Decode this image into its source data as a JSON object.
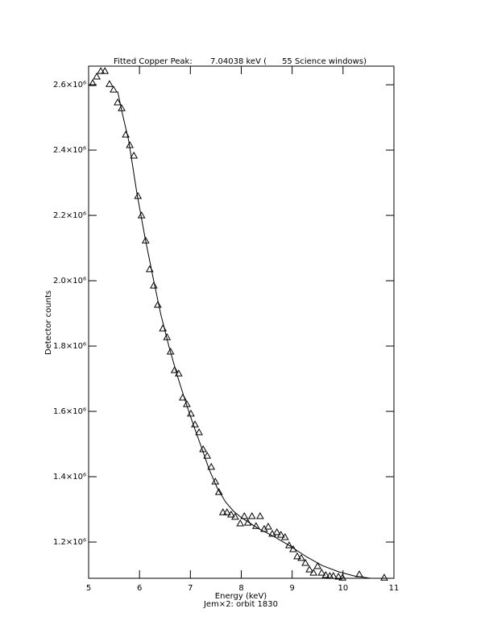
{
  "chart_data": {
    "type": "scatter",
    "title": "Fitted Copper Peak:       7.04038 keV (      55 Science windows)",
    "x_label": "Energy (keV)",
    "subtitle": "Jem×2: orbit 1830",
    "y_label": "Detector counts",
    "xlim": [
      5,
      11
    ],
    "xticks": [
      5,
      6,
      7,
      8,
      9,
      10,
      11
    ],
    "ylim": [
      1089000,
      2657000
    ],
    "yticks": [
      {
        "value": 1200000,
        "label": "1.2×10⁶"
      },
      {
        "value": 1400000,
        "label": "1.4×10⁶"
      },
      {
        "value": 1600000,
        "label": "1.6×10⁶"
      },
      {
        "value": 1800000,
        "label": "1.8×10⁶"
      },
      {
        "value": 2000000,
        "label": "2.0×10⁶"
      },
      {
        "value": 2200000,
        "label": "2.2×10⁶"
      },
      {
        "value": 2400000,
        "label": "2.4×10⁶"
      },
      {
        "value": 2600000,
        "label": "2.6×10⁶"
      }
    ],
    "grid": false,
    "series": [
      {
        "marker": "triangle",
        "color": "#000000",
        "x": [
          5.08,
          5.16,
          5.24,
          5.32,
          5.41,
          5.49,
          5.57,
          5.65,
          5.73,
          5.81,
          5.89,
          5.97,
          6.04,
          6.12,
          6.2,
          6.28,
          6.36,
          6.46,
          6.54,
          6.61,
          6.69,
          6.77,
          6.85,
          6.93,
          7.01,
          7.09,
          7.17,
          7.25,
          7.33,
          7.41,
          7.49,
          7.56,
          7.64,
          7.72,
          7.8,
          7.88,
          7.98,
          8.06,
          8.13,
          8.21,
          8.29,
          8.37,
          8.45,
          8.53,
          8.61,
          8.7,
          8.78,
          8.86,
          8.94,
          9.02,
          9.1,
          9.18,
          9.26,
          9.34,
          9.42,
          9.5,
          9.58,
          9.66,
          9.74,
          9.81,
          9.91,
          9.99,
          10.32,
          10.81
        ],
        "values": [
          2605000,
          2625000,
          2642000,
          2642000,
          2602000,
          2585000,
          2546000,
          2528000,
          2447000,
          2415000,
          2383000,
          2259000,
          2200000,
          2123000,
          2035000,
          1985000,
          1926000,
          1854000,
          1827000,
          1783000,
          1726000,
          1716000,
          1642000,
          1622000,
          1593000,
          1560000,
          1536000,
          1484000,
          1464000,
          1430000,
          1385000,
          1353000,
          1291000,
          1291000,
          1284000,
          1277000,
          1257000,
          1279000,
          1259000,
          1279000,
          1249000,
          1279000,
          1240000,
          1247000,
          1225000,
          1230000,
          1222000,
          1215000,
          1190000,
          1178000,
          1156000,
          1151000,
          1136000,
          1116000,
          1106000,
          1126000,
          1106000,
          1099000,
          1096000,
          1096000,
          1094000,
          1091000,
          1101000,
          1091000
        ]
      },
      {
        "marker": "line",
        "color": "#000000",
        "x": [
          5.57,
          5.66,
          5.79,
          5.95,
          6.11,
          6.27,
          6.42,
          6.58,
          6.74,
          6.9,
          7.06,
          7.22,
          7.37,
          7.53,
          7.69,
          7.85,
          8.01,
          8.33,
          8.64,
          8.96,
          9.27,
          9.59,
          9.91,
          10.22,
          10.54
        ],
        "values": [
          2580000,
          2514000,
          2427000,
          2267000,
          2131000,
          2007000,
          1896000,
          1798000,
          1711000,
          1632000,
          1558000,
          1489000,
          1422000,
          1365000,
          1323000,
          1294000,
          1274000,
          1242000,
          1217000,
          1188000,
          1156000,
          1128000,
          1109000,
          1096000,
          1089000
        ]
      }
    ]
  }
}
